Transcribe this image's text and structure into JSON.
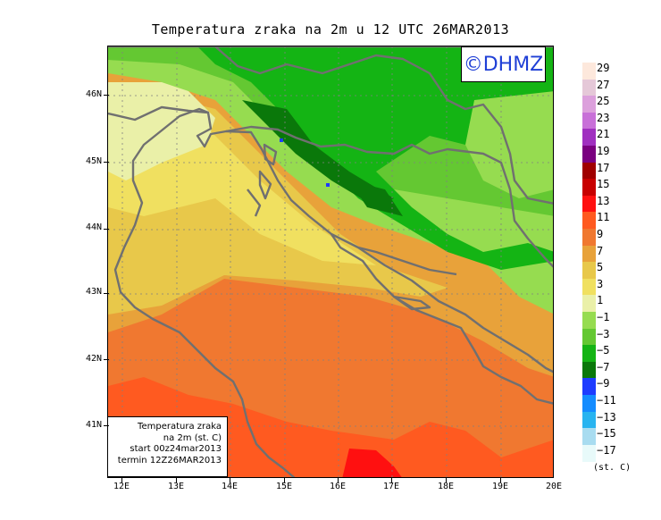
{
  "title": "Temperatura zraka na 2m u 12 UTC 26MAR2013",
  "logo": "©DHMZ",
  "info": {
    "line1": "Temperatura zraka",
    "line2": "na 2m (st. C)",
    "line3": "start 00z24mar2013",
    "line4": "termin 12Z26MAR2013"
  },
  "axes": {
    "lat_labels": [
      "46N",
      "45N",
      "44N",
      "43N",
      "42N",
      "41N"
    ],
    "lon_labels": [
      "12E",
      "13E",
      "14E",
      "15E",
      "16E",
      "17E",
      "18E",
      "19E",
      "20E"
    ]
  },
  "legend": {
    "labels": [
      "29",
      "27",
      "25",
      "23",
      "21",
      "19",
      "17",
      "15",
      "13",
      "11",
      "9",
      "7",
      "5",
      "3",
      "1",
      "−1",
      "−3",
      "−5",
      "−7",
      "−9",
      "−11",
      "−13",
      "−15",
      "−17"
    ],
    "colors": [
      "#fde8dc",
      "#e5c8d8",
      "#dca0dc",
      "#c870d8",
      "#a030c0",
      "#7a0080",
      "#a00000",
      "#c80000",
      "#ff1010",
      "#ff5a20",
      "#f07830",
      "#e8a23a",
      "#e8c84a",
      "#f0e060",
      "#eaf0a8",
      "#96dc50",
      "#64c832",
      "#14b414",
      "#0a780a",
      "#1e3cff",
      "#148cff",
      "#28b4f0",
      "#a8dcf0",
      "#e8fafa"
    ],
    "units": "(st. C)"
  },
  "map": {
    "projection": "lat-lon",
    "lat_range": [
      40.3,
      46.7
    ],
    "lon_range": [
      11.8,
      20.0
    ],
    "colors": {
      "frost": "#14b414",
      "cold_dark": "#0a780a",
      "cold": "#64c832",
      "cool": "#96dc50",
      "mild": "#eaf0a8",
      "warm1": "#f0e060",
      "warm2": "#e8c84a",
      "warm3": "#e8a23a",
      "warm4": "#f07830",
      "hot": "#ff5a20",
      "hottest": "#ff1010",
      "coast": "#707070",
      "grid": "#808080"
    }
  }
}
